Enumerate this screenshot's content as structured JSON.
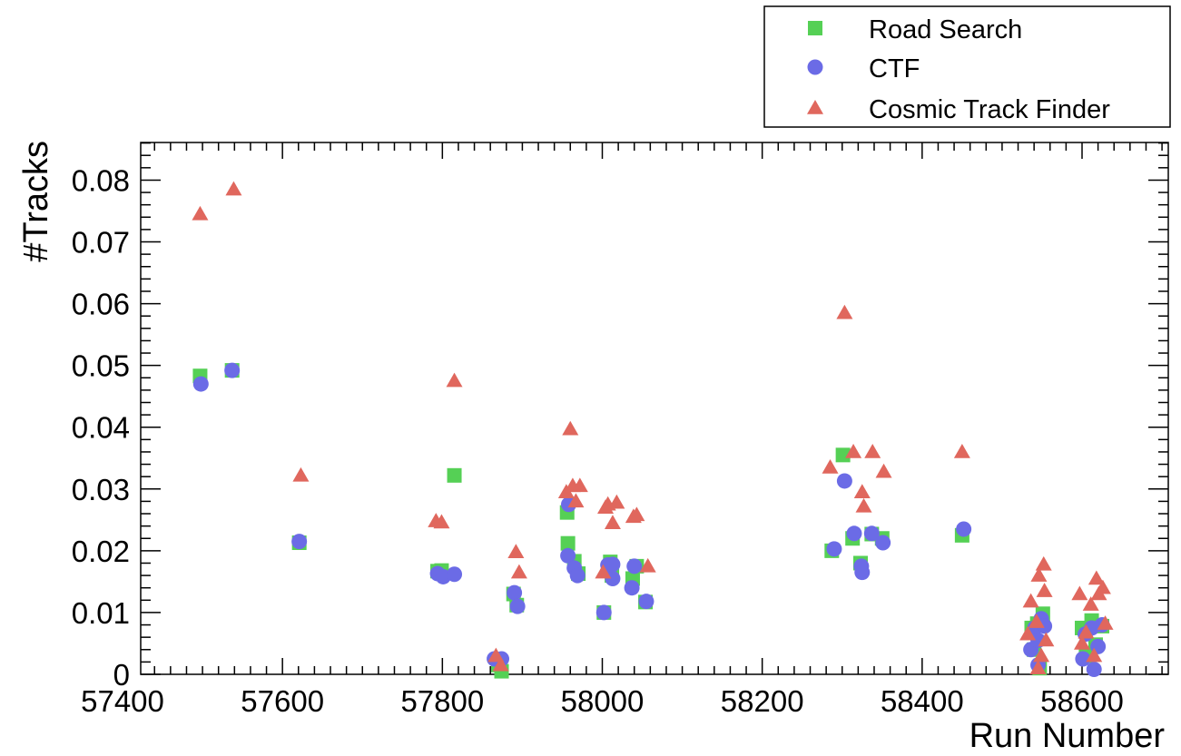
{
  "chart_data": {
    "type": "scatter",
    "xlabel": "Run Number",
    "ylabel": "#Tracks",
    "xlim": [
      57400,
      58750
    ],
    "ylim": [
      0,
      0.087
    ],
    "xticks": [
      57400,
      57600,
      57800,
      58000,
      58200,
      58400,
      58600
    ],
    "xtick_labels": [
      "57400",
      "57600",
      "57800",
      "58000",
      "58200",
      "58400",
      "58600"
    ],
    "yticks": [
      0,
      0.01,
      0.02,
      0.03,
      0.04,
      0.05,
      0.06,
      0.07,
      0.08
    ],
    "ytick_labels": [
      "0",
      "0.01",
      "0.02",
      "0.03",
      "0.04",
      "0.05",
      "0.06",
      "0.07",
      "0.08"
    ],
    "grid": false,
    "legend_position": "top-right",
    "series": [
      {
        "name": "Road Search",
        "marker": "square",
        "color": "#55d055",
        "points": [
          [
            57497,
            0.0483
          ],
          [
            57537,
            0.0492
          ],
          [
            57621,
            0.0213
          ],
          [
            57794,
            0.0167
          ],
          [
            57799,
            0.0168
          ],
          [
            57815,
            0.0322
          ],
          [
            57870,
            0.0015
          ],
          [
            57874,
            0.0005
          ],
          [
            57889,
            0.013
          ],
          [
            57893,
            0.0112
          ],
          [
            57956,
            0.0262
          ],
          [
            57957,
            0.0212
          ],
          [
            57965,
            0.0183
          ],
          [
            57970,
            0.0163
          ],
          [
            58002,
            0.01
          ],
          [
            58010,
            0.0182
          ],
          [
            58012,
            0.016
          ],
          [
            58038,
            0.0155
          ],
          [
            58043,
            0.0175
          ],
          [
            58054,
            0.0117
          ],
          [
            58287,
            0.02
          ],
          [
            58301,
            0.0355
          ],
          [
            58313,
            0.022
          ],
          [
            58323,
            0.018
          ],
          [
            58337,
            0.0227
          ],
          [
            58350,
            0.022
          ],
          [
            58450,
            0.0225
          ],
          [
            58537,
            0.0075
          ],
          [
            58540,
            0.004
          ],
          [
            58544,
            0.0082
          ],
          [
            58547,
            0.001
          ],
          [
            58551,
            0.0098
          ],
          [
            58600,
            0.0075
          ],
          [
            58605,
            0.003
          ],
          [
            58612,
            0.0087
          ],
          [
            58617,
            0.0048
          ],
          [
            58625,
            0.0078
          ]
        ]
      },
      {
        "name": "CTF",
        "marker": "circle",
        "color": "#6b6be6",
        "points": [
          [
            57498,
            0.047
          ],
          [
            57537,
            0.0492
          ],
          [
            57621,
            0.0215
          ],
          [
            57794,
            0.0163
          ],
          [
            57801,
            0.0158
          ],
          [
            57815,
            0.0162
          ],
          [
            57865,
            0.0025
          ],
          [
            57874,
            0.0025
          ],
          [
            57890,
            0.0132
          ],
          [
            57894,
            0.011
          ],
          [
            57957,
            0.0192
          ],
          [
            57958,
            0.0275
          ],
          [
            57965,
            0.0172
          ],
          [
            57969,
            0.016
          ],
          [
            58002,
            0.01
          ],
          [
            58007,
            0.0177
          ],
          [
            58013,
            0.0178
          ],
          [
            58013,
            0.0155
          ],
          [
            58037,
            0.014
          ],
          [
            58040,
            0.0175
          ],
          [
            58055,
            0.0118
          ],
          [
            58290,
            0.0203
          ],
          [
            58303,
            0.0313
          ],
          [
            58315,
            0.0228
          ],
          [
            58324,
            0.0175
          ],
          [
            58325,
            0.0165
          ],
          [
            58337,
            0.0228
          ],
          [
            58351,
            0.0213
          ],
          [
            58452,
            0.0235
          ],
          [
            58536,
            0.004
          ],
          [
            58541,
            0.0075
          ],
          [
            58545,
            0.0055
          ],
          [
            58549,
            0.009
          ],
          [
            58553,
            0.0078
          ],
          [
            58545,
            0.0015
          ],
          [
            58601,
            0.0025
          ],
          [
            58604,
            0.0065
          ],
          [
            58612,
            0.0075
          ],
          [
            58615,
            0.0008
          ],
          [
            58620,
            0.0045
          ],
          [
            58625,
            0.008
          ]
        ]
      },
      {
        "name": "Cosmic Track Finder",
        "marker": "triangle",
        "color": "#e0675d",
        "points": [
          [
            57497,
            0.0745
          ],
          [
            57539,
            0.0785
          ],
          [
            57623,
            0.0322
          ],
          [
            57792,
            0.0248
          ],
          [
            57799,
            0.0246
          ],
          [
            57815,
            0.0475
          ],
          [
            57867,
            0.003
          ],
          [
            57873,
            0.0015
          ],
          [
            57892,
            0.0198
          ],
          [
            57896,
            0.0165
          ],
          [
            57955,
            0.0295
          ],
          [
            57960,
            0.0397
          ],
          [
            57963,
            0.0305
          ],
          [
            57967,
            0.028
          ],
          [
            57972,
            0.0305
          ],
          [
            58001,
            0.0165
          ],
          [
            58004,
            0.027
          ],
          [
            58007,
            0.0275
          ],
          [
            58013,
            0.0245
          ],
          [
            58018,
            0.0278
          ],
          [
            58039,
            0.0255
          ],
          [
            58043,
            0.0258
          ],
          [
            58057,
            0.0175
          ],
          [
            58285,
            0.0335
          ],
          [
            58303,
            0.0585
          ],
          [
            58314,
            0.036
          ],
          [
            58325,
            0.0295
          ],
          [
            58327,
            0.0272
          ],
          [
            58338,
            0.036
          ],
          [
            58352,
            0.0328
          ],
          [
            58450,
            0.036
          ],
          [
            58532,
            0.0065
          ],
          [
            58536,
            0.0118
          ],
          [
            58543,
            0.0085
          ],
          [
            58546,
            0.016
          ],
          [
            58549,
            0.003
          ],
          [
            58552,
            0.0178
          ],
          [
            58553,
            0.0135
          ],
          [
            58545,
            0.001
          ],
          [
            58555,
            0.0055
          ],
          [
            58597,
            0.013
          ],
          [
            58600,
            0.005
          ],
          [
            58605,
            0.0068
          ],
          [
            58611,
            0.0113
          ],
          [
            58615,
            0.003
          ],
          [
            58618,
            0.0155
          ],
          [
            58621,
            0.013
          ],
          [
            58626,
            0.014
          ],
          [
            58629,
            0.0082
          ]
        ]
      }
    ]
  }
}
